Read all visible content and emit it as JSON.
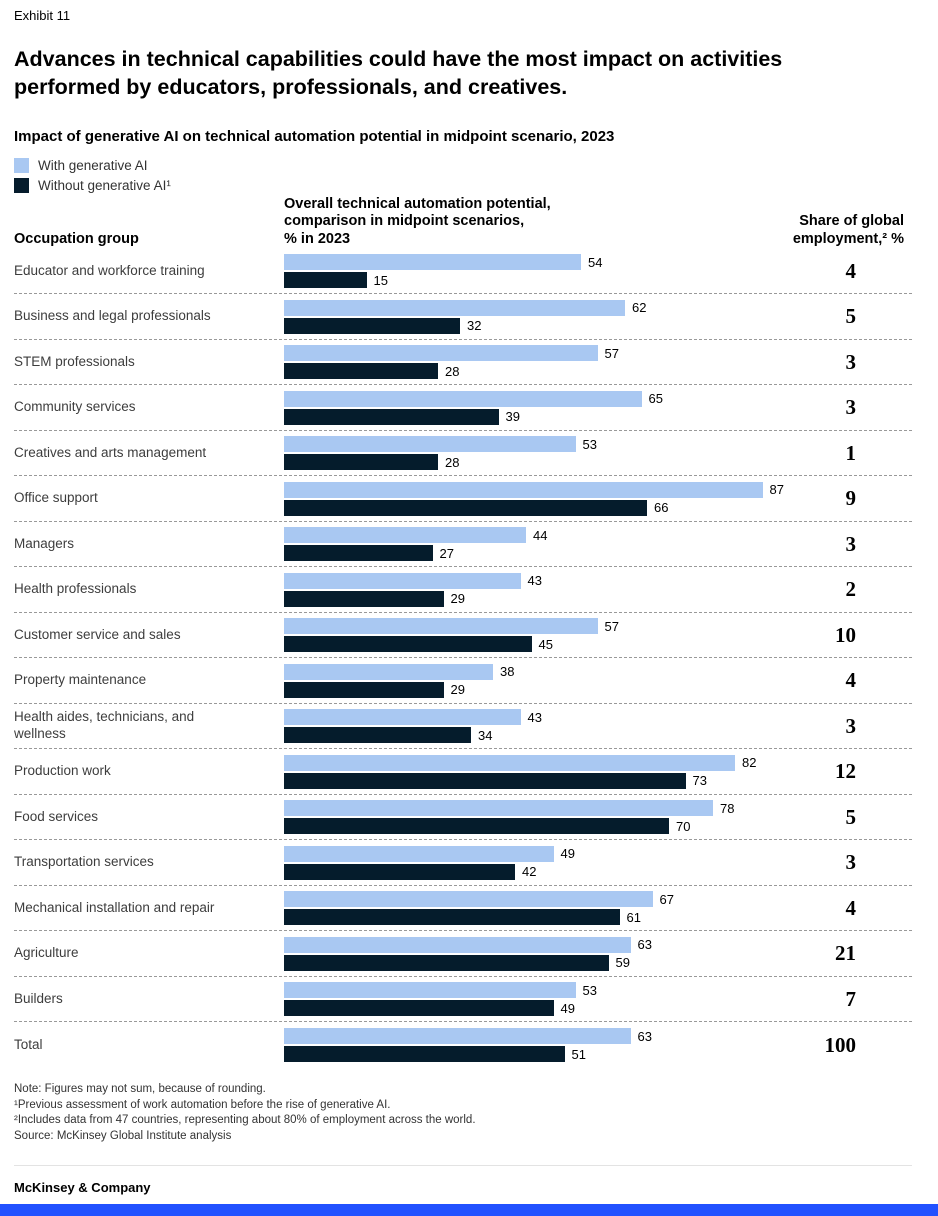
{
  "exhibit_label": "Exhibit 11",
  "title": "Advances in technical capabilities could have the most impact on activities performed by educators, professionals, and creatives.",
  "subtitle": "Impact of generative AI on technical automation potential in midpoint scenario, 2023",
  "legend": {
    "with": {
      "label": "With generative AI",
      "color": "#a9c8f2"
    },
    "without": {
      "label": "Without generative AI¹",
      "color": "#051c2c"
    }
  },
  "columns": {
    "occupation": "Occupation group",
    "potential_header": "Overall technical automation potential,\ncomparison in midpoint scenarios,\n% in 2023",
    "share_header": "Share of global\nemployment,² %"
  },
  "chart_data": {
    "type": "bar",
    "orientation": "horizontal",
    "unit": "%",
    "xlim": [
      0,
      100
    ],
    "title": "Impact of generative AI on technical automation potential in midpoint scenario, 2023",
    "categories": [
      "Educator and workforce training",
      "Business and legal professionals",
      "STEM professionals",
      "Community services",
      "Creatives and arts management",
      "Office support",
      "Managers",
      "Health professionals",
      "Customer service and sales",
      "Property maintenance",
      "Health aides, technicians, and wellness",
      "Production work",
      "Food services",
      "Transportation services",
      "Mechanical installation and repair",
      "Agriculture",
      "Builders",
      "Total"
    ],
    "series": [
      {
        "name": "With generative AI",
        "color": "#a9c8f2",
        "values": [
          54,
          62,
          57,
          65,
          53,
          87,
          44,
          43,
          57,
          38,
          43,
          82,
          78,
          49,
          67,
          63,
          53,
          63
        ]
      },
      {
        "name": "Without generative AI",
        "color": "#051c2c",
        "values": [
          15,
          32,
          28,
          39,
          28,
          66,
          27,
          29,
          45,
          29,
          34,
          73,
          70,
          42,
          61,
          59,
          49,
          51
        ]
      }
    ],
    "share_of_global_employment": [
      4,
      5,
      3,
      3,
      1,
      9,
      3,
      2,
      10,
      4,
      3,
      12,
      5,
      3,
      4,
      21,
      7,
      100
    ]
  },
  "footnotes": [
    "Note: Figures may not sum, because of rounding.",
    "¹Previous assessment of work automation before the rise of generative AI.",
    "²Includes data from 47 countries, representing about 80% of employment across the world.",
    "Source: McKinsey Global Institute analysis"
  ],
  "footer": "McKinsey & Company",
  "colors": {
    "bar_with_genai": "#a9c8f2",
    "bar_without_genai": "#051c2c",
    "bottom_stripe": "#2251ff",
    "separator": "#999999"
  }
}
